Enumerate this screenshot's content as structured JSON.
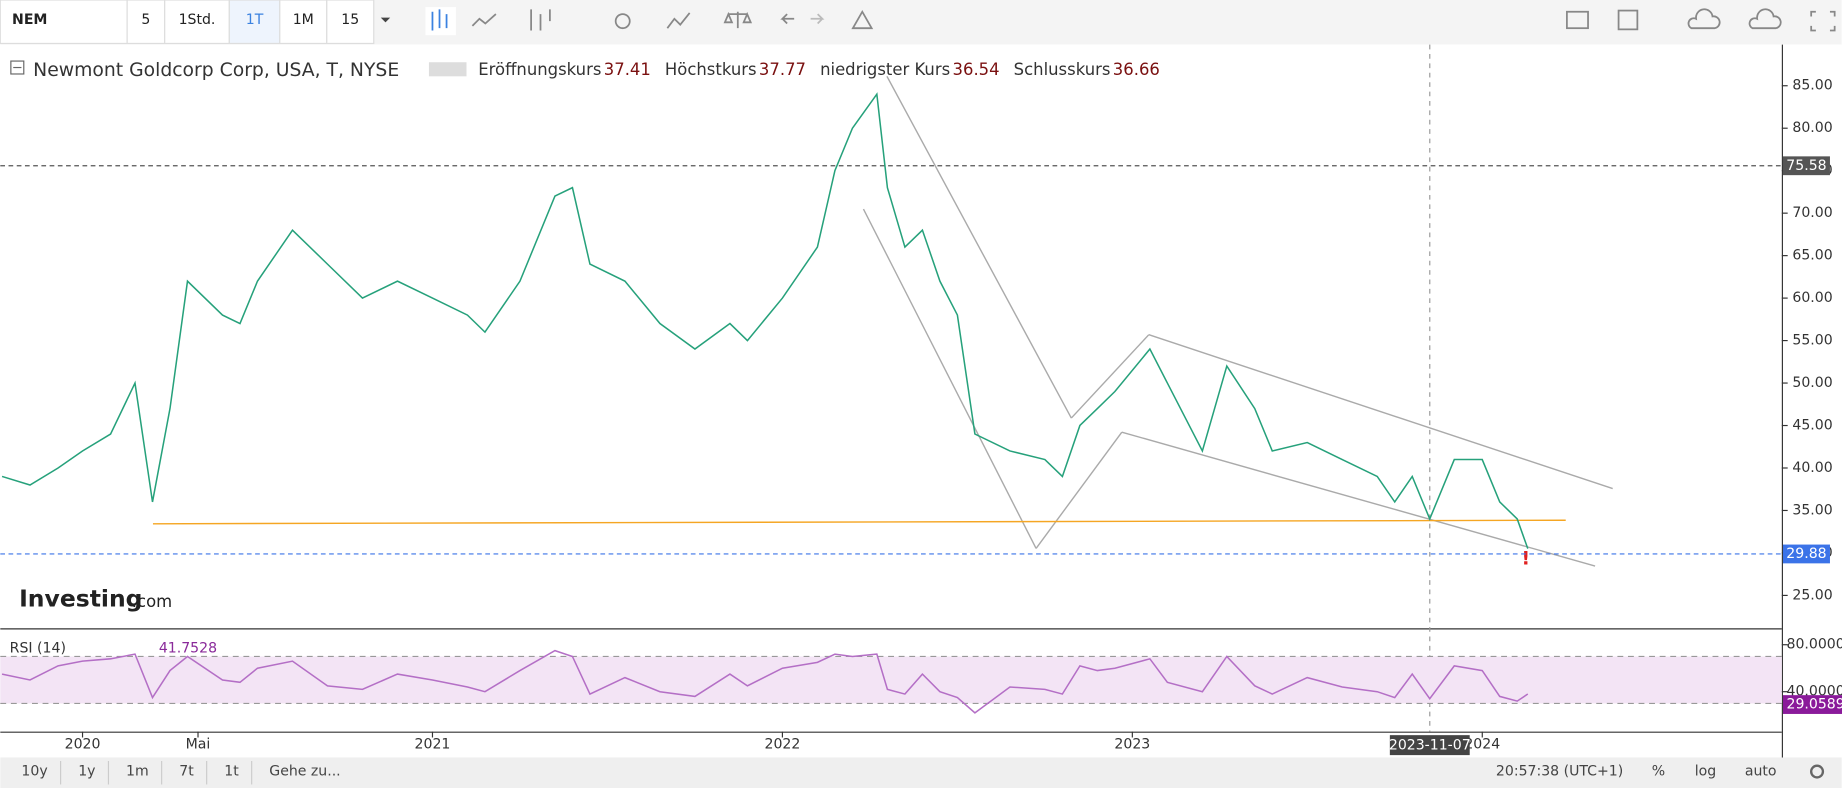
{
  "toolbar": {
    "symbol": "NEM",
    "intervals": [
      "5",
      "1Std.",
      "1T",
      "1M",
      "15"
    ]
  },
  "legend": {
    "title": "Newmont Goldcorp Corp, USA, T, NYSE",
    "fields": [
      {
        "label": "Eröffnungskurs",
        "value": 37.41
      },
      {
        "label": "Höchstkurs",
        "value": 37.77
      },
      {
        "label": "niedrigster Kurs",
        "value": 36.54
      },
      {
        "label": "Schlusskurs",
        "value": 36.66
      }
    ]
  },
  "logo": {
    "main": "Investing",
    "suffix": ".com"
  },
  "chart_data": [
    {
      "type": "line",
      "x": [
        2019.77,
        2019.85,
        2019.93,
        2020.0,
        2020.08,
        2020.15,
        2020.2,
        2020.25,
        2020.3,
        2020.4,
        2020.45,
        2020.5,
        2020.6,
        2020.7,
        2020.8,
        2020.9,
        2021.0,
        2021.1,
        2021.15,
        2021.25,
        2021.35,
        2021.4,
        2021.45,
        2021.55,
        2021.65,
        2021.75,
        2021.85,
        2021.9,
        2022.0,
        2022.1,
        2022.15,
        2022.2,
        2022.27,
        2022.3,
        2022.35,
        2022.4,
        2022.45,
        2022.5,
        2022.55,
        2022.65,
        2022.75,
        2022.8,
        2022.85,
        2022.9,
        2022.95,
        2023.05,
        2023.1,
        2023.2,
        2023.27,
        2023.35,
        2023.4,
        2023.5,
        2023.6,
        2023.7,
        2023.75,
        2023.8,
        2023.85,
        2023.92,
        2024.0,
        2024.05,
        2024.1,
        2024.13
      ],
      "values": [
        39,
        38,
        40,
        42,
        44,
        50,
        36,
        47,
        62,
        58,
        57,
        62,
        68,
        64,
        60,
        62,
        60,
        58,
        56,
        62,
        72,
        73,
        64,
        62,
        57,
        54,
        57,
        55,
        60,
        66,
        75,
        80,
        84,
        73,
        66,
        68,
        62,
        58,
        44,
        42,
        41,
        39,
        45,
        47,
        49,
        54,
        50,
        42,
        52,
        47,
        42,
        43,
        41,
        39,
        36,
        39,
        34,
        41,
        41,
        36,
        34,
        30.5
      ],
      "color": "#26a17b",
      "xlim": [
        2019.765,
        2024.856
      ],
      "xticks": [
        {
          "value": 2020,
          "label": "2020"
        },
        {
          "value": 2020.33,
          "label": "Mai"
        },
        {
          "value": 2021,
          "label": "2021"
        },
        {
          "value": 2022,
          "label": "2022"
        },
        {
          "value": 2023,
          "label": "2023"
        },
        {
          "value": 2024,
          "label": "2024"
        }
      ],
      "ylim": [
        21.13,
        89.84
      ],
      "yticks": [
        {
          "value": 25,
          "label": "25.00"
        },
        {
          "value": 30,
          "label": "30.00"
        },
        {
          "value": 35,
          "label": "35.00"
        },
        {
          "value": 40,
          "label": "40.00"
        },
        {
          "value": 45,
          "label": "45.00"
        },
        {
          "value": 50,
          "label": "50.00"
        },
        {
          "value": 55,
          "label": "55.00"
        },
        {
          "value": 60,
          "label": "60.00"
        },
        {
          "value": 65,
          "label": "65.00"
        },
        {
          "value": 70,
          "label": "70.00"
        },
        {
          "value": 75,
          "label": "75.00"
        },
        {
          "value": 80,
          "label": "80.00"
        },
        {
          "value": 85,
          "label": "85.00"
        }
      ],
      "price_lines": [
        {
          "value": 75.58,
          "color": "#555555"
        },
        {
          "value": 29.88,
          "color": "#3b73e8"
        }
      ],
      "crosshair": {
        "x": 2023.85,
        "label": "2023-11-07"
      }
    },
    {
      "type": "line",
      "title": "RSI (14)",
      "current": 41.7528,
      "x_ref": "price",
      "values": [
        55,
        50,
        62,
        66,
        68,
        72,
        35,
        58,
        70,
        50,
        48,
        60,
        66,
        45,
        42,
        55,
        50,
        44,
        40,
        58,
        75,
        70,
        38,
        52,
        40,
        36,
        55,
        45,
        60,
        65,
        72,
        70,
        72,
        42,
        38,
        55,
        40,
        35,
        22,
        44,
        42,
        38,
        62,
        58,
        60,
        68,
        48,
        40,
        70,
        45,
        38,
        52,
        44,
        40,
        35,
        55,
        34,
        62,
        58,
        36,
        32,
        38
      ],
      "color": "#b46fc6",
      "ylim": [
        6,
        92
      ],
      "bands": [
        30,
        70
      ],
      "yticks": [
        {
          "value": 40,
          "label": "40.0000"
        },
        {
          "value": 80,
          "label": "80.0000"
        }
      ],
      "last_label": {
        "value": 29.0589,
        "label": "29.0589"
      }
    }
  ],
  "bottom_bar": {
    "ranges": [
      "10y",
      "1y",
      "1m",
      "7t",
      "1t"
    ],
    "goto": "Gehe zu...",
    "time": "20:57:38 (UTC+1)",
    "options": [
      "%",
      "log",
      "auto"
    ]
  }
}
